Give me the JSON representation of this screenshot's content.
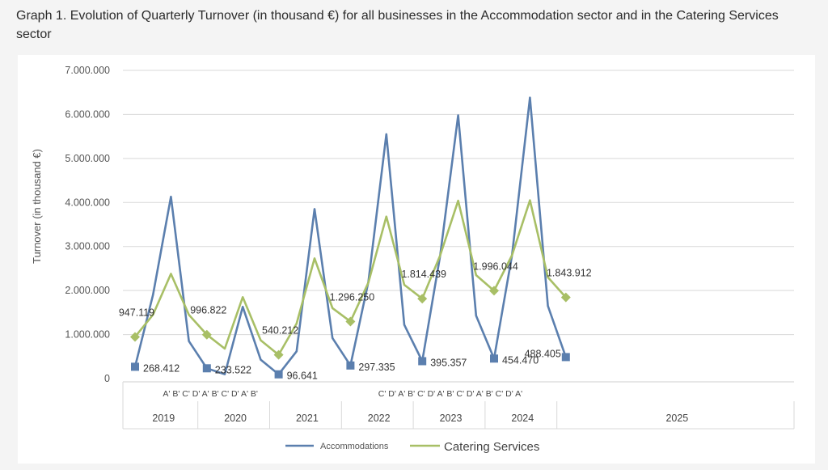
{
  "title": "Graph 1. Evolution of Quarterly Turnover (in thousand €) for all businesses in the Accommodation sector and in the Catering Services sector",
  "chart_data": {
    "type": "line",
    "title": "Graph 1. Evolution of Quarterly Turnover (in thousand €) for all businesses in the Accommodation sector and in the Catering Services sector",
    "ylabel": "Turnover (in thousand €)",
    "xlabel": "",
    "ylim": [
      0,
      7000000
    ],
    "yticks": [
      0,
      1000000,
      2000000,
      3000000,
      4000000,
      5000000,
      6000000,
      7000000
    ],
    "ytick_labels": [
      "0",
      "1.000.000",
      "2.000.000",
      "3.000.000",
      "4.000.000",
      "5.000.000",
      "6.000.000",
      "7.000.000"
    ],
    "grid": true,
    "legend_position": "bottom",
    "years": [
      {
        "label": "2019",
        "quarters": 4
      },
      {
        "label": "2020",
        "quarters": 4
      },
      {
        "label": "2021",
        "quarters": 4
      },
      {
        "label": "2022",
        "quarters": 4
      },
      {
        "label": "2023",
        "quarters": 4
      },
      {
        "label": "2024",
        "quarters": 4
      },
      {
        "label": "2025",
        "quarters": 1
      }
    ],
    "quarter_label_rows": [
      {
        "text": "A' B' C' D' A' B' C' D' A' B'",
        "start_quarter": 2
      },
      {
        "text": "C' D' A' B' C' D' A' B' C' D' A' B' C' D' A'",
        "start_quarter": 14
      }
    ],
    "series": [
      {
        "name": "Accommodations",
        "color": "#5b7fae",
        "marker": "square",
        "values": [
          268412,
          1900000,
          4130000,
          850000,
          233522,
          100000,
          1630000,
          430000,
          96641,
          620000,
          3850000,
          920000,
          297335,
          2200000,
          5550000,
          1220000,
          395357,
          2800000,
          5980000,
          1430000,
          454470,
          2800000,
          6380000,
          1650000,
          488405
        ]
      },
      {
        "name": "Catering Services",
        "color": "#a8bf66",
        "marker": "diamond",
        "values": [
          947119,
          1450000,
          2380000,
          1450000,
          996822,
          680000,
          1850000,
          870000,
          540212,
          1250000,
          2730000,
          1600000,
          1296250,
          2180000,
          3680000,
          2130000,
          1814439,
          2800000,
          4040000,
          2350000,
          1996044,
          2800000,
          4050000,
          2300000,
          1843912
        ]
      }
    ],
    "data_labels": [
      {
        "series": 0,
        "index": 0,
        "text": "268.412"
      },
      {
        "series": 0,
        "index": 4,
        "text": "233.522"
      },
      {
        "series": 0,
        "index": 8,
        "text": "96.641"
      },
      {
        "series": 0,
        "index": 12,
        "text": "297.335"
      },
      {
        "series": 0,
        "index": 16,
        "text": "395.357"
      },
      {
        "series": 0,
        "index": 20,
        "text": "454.470"
      },
      {
        "series": 0,
        "index": 24,
        "text": "488.405"
      },
      {
        "series": 1,
        "index": 0,
        "text": "947.119"
      },
      {
        "series": 1,
        "index": 4,
        "text": "996.822"
      },
      {
        "series": 1,
        "index": 8,
        "text": "540.212"
      },
      {
        "series": 1,
        "index": 12,
        "text": "1.296.250"
      },
      {
        "series": 1,
        "index": 16,
        "text": "1.814.439"
      },
      {
        "series": 1,
        "index": 20,
        "text": "1.996.044"
      },
      {
        "series": 1,
        "index": 24,
        "text": "1.843.912"
      }
    ]
  }
}
